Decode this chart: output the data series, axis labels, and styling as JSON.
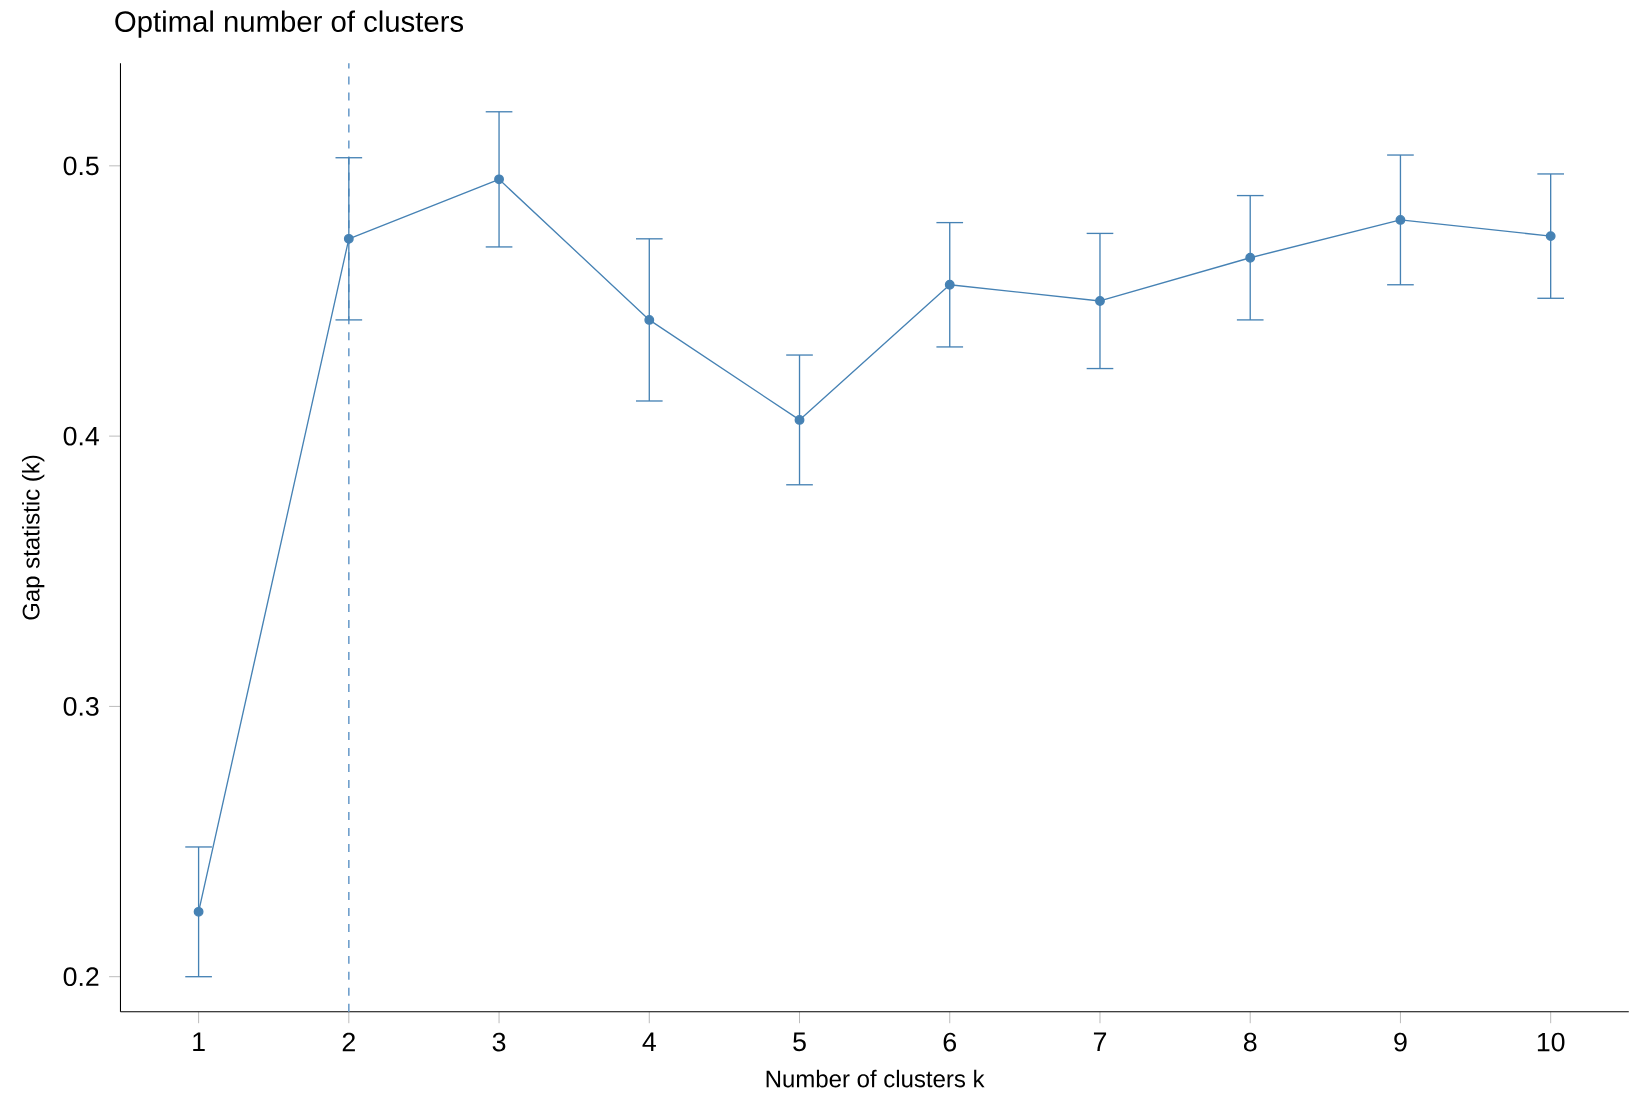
{
  "chart_data": {
    "type": "line",
    "title": "Optimal number of clusters",
    "xlabel": "Number of clusters k",
    "ylabel": "Gap statistic (k)",
    "x": [
      1,
      2,
      3,
      4,
      5,
      6,
      7,
      8,
      9,
      10
    ],
    "series": [
      {
        "color": "#4682b4",
        "values": [
          0.224,
          0.473,
          0.495,
          0.443,
          0.406,
          0.456,
          0.45,
          0.466,
          0.48,
          0.474
        ],
        "errors": [
          0.024,
          0.03,
          0.025,
          0.03,
          0.024,
          0.023,
          0.025,
          0.023,
          0.024,
          0.023
        ]
      }
    ],
    "xlim": [
      0.48,
      10.52
    ],
    "xticks": [
      1,
      2,
      3,
      4,
      5,
      6,
      7,
      8,
      9,
      10
    ],
    "ylim": [
      0.187,
      0.538
    ],
    "yticks": [
      {
        "value": 0.2,
        "label": "0.2"
      },
      {
        "value": 0.3,
        "label": "0.3"
      },
      {
        "value": 0.4,
        "label": "0.4"
      },
      {
        "value": 0.5,
        "label": "0.5"
      }
    ],
    "ref_lines": [
      {
        "axis": "x",
        "value": 2,
        "color": "#6f9fcc",
        "line_style": "dashed"
      }
    ],
    "marker": "circle",
    "line_style": "solid",
    "grid": false
  }
}
